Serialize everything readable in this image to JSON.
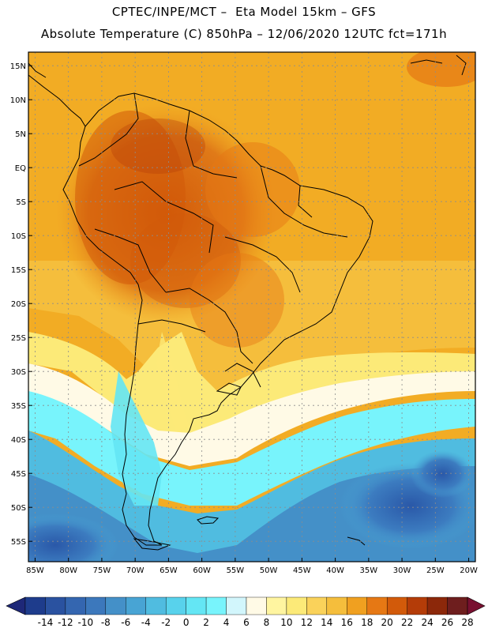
{
  "header": {
    "line1": "CPTEC/INPE/MCT –  Eta Model 15km – GFS",
    "line2": "Absolute Temperature (C) 850hPa – 12/06/2020 12UTC fct=171h"
  },
  "map": {
    "lon_range": [
      -86,
      -19
    ],
    "lat_range": [
      -58,
      17
    ],
    "lon_ticks": [
      -85,
      -80,
      -75,
      -70,
      -65,
      -60,
      -55,
      -50,
      -45,
      -40,
      -35,
      -30,
      -25,
      -20
    ],
    "lon_tick_labels": [
      "85W",
      "80W",
      "75W",
      "70W",
      "65W",
      "60W",
      "55W",
      "50W",
      "45W",
      "40W",
      "35W",
      "30W",
      "25W",
      "20W"
    ],
    "lat_ticks": [
      15,
      10,
      5,
      0,
      -5,
      -10,
      -15,
      -20,
      -25,
      -30,
      -35,
      -40,
      -45,
      -50,
      -55
    ],
    "lat_tick_labels": [
      "15N",
      "10N",
      "5N",
      "EQ",
      "5S",
      "10S",
      "15S",
      "20S",
      "25S",
      "30S",
      "35S",
      "40S",
      "45S",
      "50S",
      "55S"
    ]
  },
  "colorbar": {
    "labels": [
      "-14",
      "-12",
      "-10",
      "-8",
      "-6",
      "-4",
      "-2",
      "0",
      "2",
      "4",
      "6",
      "8",
      "10",
      "12",
      "14",
      "16",
      "18",
      "20",
      "22",
      "24",
      "26",
      "28"
    ],
    "colors": [
      "#1e3c8c",
      "#2a52a0",
      "#3466b0",
      "#3c78bc",
      "#4490c8",
      "#48a4d4",
      "#50bce0",
      "#58d2ec",
      "#64e6f4",
      "#78f4fc",
      "#d2f6fc",
      "#fffae6",
      "#fff5a0",
      "#fcea78",
      "#fad25a",
      "#f5be3c",
      "#f0a020",
      "#e67814",
      "#d25a0a",
      "#b43c08",
      "#8c280a",
      "#6e1e1e"
    ],
    "low_cap_color": "#1e2878",
    "high_cap_color": "#781030"
  }
}
